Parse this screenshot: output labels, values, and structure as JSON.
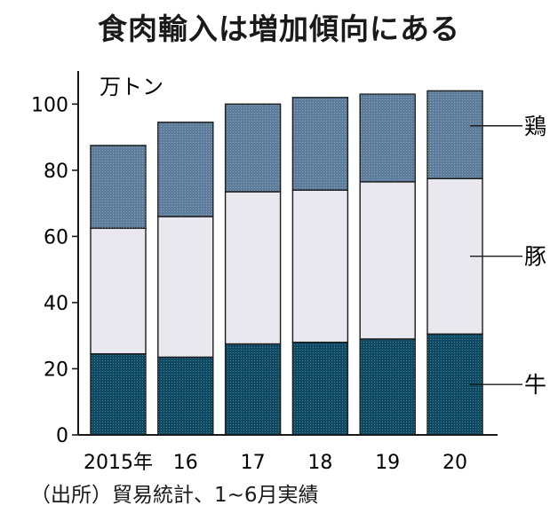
{
  "chart_data": {
    "type": "bar",
    "stacked": true,
    "title": "食肉輸入は増加傾向にある",
    "unit": "万トン",
    "source": "（出所）貿易統計、1~6月実績",
    "categories": [
      "2015年",
      "16",
      "17",
      "18",
      "19",
      "20"
    ],
    "series": [
      {
        "name": "牛",
        "values": [
          24.5,
          23.5,
          27.5,
          28,
          29,
          30.5
        ]
      },
      {
        "name": "豚",
        "values": [
          38,
          42.5,
          46,
          46,
          47.5,
          47
        ]
      },
      {
        "name": "鶏",
        "values": [
          25,
          28.5,
          26.5,
          28,
          26.5,
          26.5
        ]
      }
    ],
    "ylim": [
      0,
      110
    ],
    "yticks": [
      0,
      20,
      40,
      60,
      80,
      100
    ],
    "grid": false,
    "legend": "right",
    "colors": [
      "#0e4a63",
      "#e8e8ee",
      "#5e7d9c"
    ]
  }
}
